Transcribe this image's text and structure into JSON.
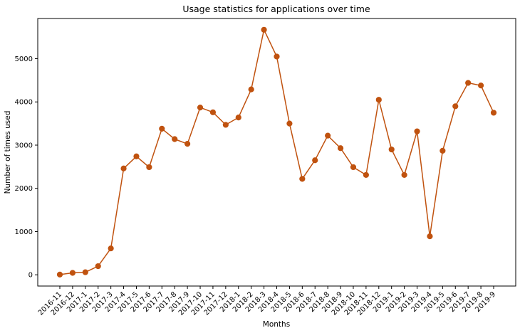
{
  "chart_data": {
    "type": "line",
    "title": "Usage statistics for applications over time",
    "xlabel": "Months",
    "ylabel": "Number of times used",
    "categories": [
      "2016-11",
      "2016-12",
      "2017-1",
      "2017-2",
      "2017-3",
      "2017-4",
      "2017-5",
      "2017-6",
      "2017-7",
      "2017-8",
      "2017-9",
      "2017-10",
      "2017-11",
      "2017-12",
      "2018-1",
      "2018-2",
      "2018-3",
      "2018-4",
      "2018-5",
      "2018-6",
      "2018-7",
      "2018-8",
      "2018-9",
      "2018-10",
      "2018-11",
      "2018-12",
      "2019-1",
      "2019-2",
      "2019-3",
      "2019-4",
      "2019-5",
      "2019-6",
      "2019-7",
      "2019-8",
      "2019-9"
    ],
    "series": [
      {
        "values": [
          5,
          45,
          60,
          200,
          610,
          2460,
          2740,
          2490,
          3380,
          3140,
          3030,
          3870,
          3760,
          3470,
          3640,
          4290,
          5670,
          5050,
          3500,
          2220,
          2650,
          3220,
          2930,
          2490,
          2310,
          4050,
          2900,
          2310,
          3320,
          890,
          2870,
          3900,
          4440,
          4380,
          3750
        ],
        "color": "#c0520f"
      }
    ],
    "ylim": [
      -260,
      5930
    ],
    "yticks": [
      0,
      1000,
      2000,
      3000,
      4000,
      5000
    ],
    "grid": false,
    "legend": "none"
  }
}
